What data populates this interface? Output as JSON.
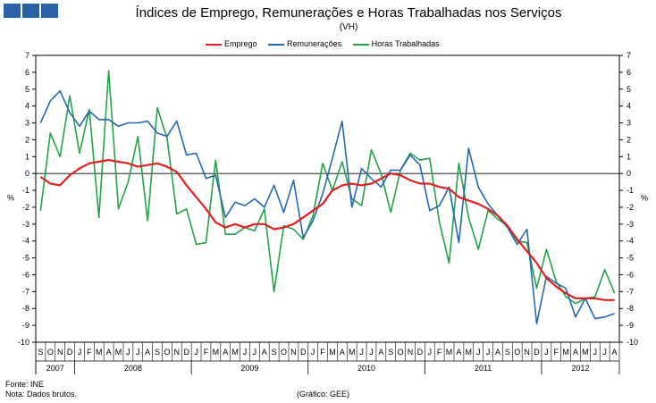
{
  "header": {
    "title": "Índices de Emprego, Remunerações e Horas Trabalhadas nos Serviços",
    "subtitle": "(VH)"
  },
  "footer": {
    "source": "Fonte: INE",
    "note": "Nota: Dados brutos.",
    "credit": "(Gráfico: GEE)"
  },
  "colors": {
    "emprego": "#e02020",
    "remuneracoes": "#2468ac",
    "horas": "#22a24a",
    "logo": "#2a62a7"
  },
  "chart_data": {
    "type": "line",
    "ylabel_left": "%",
    "ylabel_right": "%",
    "ylim": [
      -10,
      7
    ],
    "yticks": [
      7,
      6,
      5,
      4,
      3,
      2,
      1,
      0,
      -1,
      -2,
      -3,
      -4,
      -5,
      -6,
      -7,
      -8,
      -9,
      -10
    ],
    "grid": false,
    "legend_position": "top",
    "month_labels": [
      "S",
      "O",
      "N",
      "D",
      "J",
      "F",
      "M",
      "A",
      "M",
      "J",
      "J",
      "A",
      "S",
      "O",
      "N",
      "D",
      "J",
      "F",
      "M",
      "A",
      "M",
      "J",
      "J",
      "A",
      "S",
      "O",
      "N",
      "D",
      "J",
      "F",
      "M",
      "A",
      "M",
      "J",
      "J",
      "A",
      "S",
      "O",
      "N",
      "D",
      "J",
      "F",
      "M",
      "A",
      "M",
      "J",
      "J",
      "A",
      "S",
      "O",
      "N",
      "D",
      "J",
      "F",
      "M",
      "A",
      "M",
      "J",
      "J",
      "A"
    ],
    "years": [
      {
        "label": "2007",
        "start": 0,
        "count": 4
      },
      {
        "label": "2008",
        "start": 4,
        "count": 12
      },
      {
        "label": "2009",
        "start": 16,
        "count": 12
      },
      {
        "label": "2010",
        "start": 28,
        "count": 12
      },
      {
        "label": "2011",
        "start": 40,
        "count": 12
      },
      {
        "label": "2012",
        "start": 52,
        "count": 8
      }
    ],
    "series": [
      {
        "name": "Emprego",
        "key": "emprego",
        "values": [
          -0.2,
          -0.6,
          -0.7,
          -0.1,
          0.3,
          0.6,
          0.7,
          0.8,
          0.7,
          0.6,
          0.4,
          0.5,
          0.6,
          0.4,
          0.1,
          -0.7,
          -1.4,
          -2.1,
          -2.9,
          -3.2,
          -3.0,
          -3.2,
          -3.0,
          -3.0,
          -3.3,
          -3.2,
          -3.0,
          -2.6,
          -2.2,
          -1.8,
          -1.0,
          -0.7,
          -0.6,
          -0.7,
          -0.6,
          -0.3,
          0.0,
          -0.1,
          -0.4,
          -0.6,
          -0.6,
          -0.8,
          -0.9,
          -1.4,
          -1.6,
          -1.8,
          -2.1,
          -2.5,
          -3.1,
          -3.9,
          -4.6,
          -5.3,
          -6.2,
          -6.7,
          -7.1,
          -7.4,
          -7.4,
          -7.4,
          -7.5,
          -7.5
        ]
      },
      {
        "name": "Remunerações",
        "key": "remuneracoes",
        "values": [
          3.0,
          4.3,
          4.9,
          3.6,
          2.8,
          3.7,
          3.2,
          3.2,
          2.8,
          3.0,
          3.0,
          3.1,
          2.4,
          2.2,
          3.1,
          1.1,
          1.2,
          -0.3,
          -0.1,
          -2.6,
          -1.7,
          -1.9,
          -1.5,
          -2.0,
          -0.7,
          -2.3,
          -0.4,
          -3.8,
          -2.8,
          -1.2,
          0.9,
          3.1,
          -2.0,
          0.3,
          -0.3,
          -0.8,
          0.2,
          0.2,
          1.1,
          0.5,
          -2.2,
          -1.9,
          -0.8,
          -4.1,
          1.5,
          -0.8,
          -1.8,
          -2.5,
          -3.2,
          -4.2,
          -3.3,
          -8.9,
          -6.1,
          -6.5,
          -6.8,
          -8.5,
          -7.4,
          -8.6,
          -8.5,
          -8.3
        ]
      },
      {
        "name": "Horas Trabalhadas",
        "key": "horas",
        "values": [
          -2.2,
          2.4,
          1.0,
          4.6,
          1.2,
          3.8,
          -2.6,
          6.1,
          -2.1,
          -0.5,
          2.2,
          -2.8,
          3.9,
          2.1,
          -2.4,
          -2.1,
          -4.2,
          -4.1,
          0.8,
          -3.6,
          -3.6,
          -3.2,
          -3.4,
          -2.1,
          -7.0,
          -3.1,
          -3.3,
          -3.9,
          -2.5,
          0.6,
          -1.0,
          0.7,
          -1.5,
          -1.9,
          1.4,
          0.0,
          -2.3,
          0.2,
          1.2,
          0.8,
          0.9,
          -2.9,
          -5.3,
          0.6,
          -2.6,
          -4.5,
          -2.2,
          -2.7,
          -3.1,
          -4.0,
          -4.1,
          -6.8,
          -4.5,
          -6.4,
          -7.3,
          -7.7,
          -7.4,
          -7.3,
          -5.7,
          -7.1
        ]
      }
    ]
  }
}
